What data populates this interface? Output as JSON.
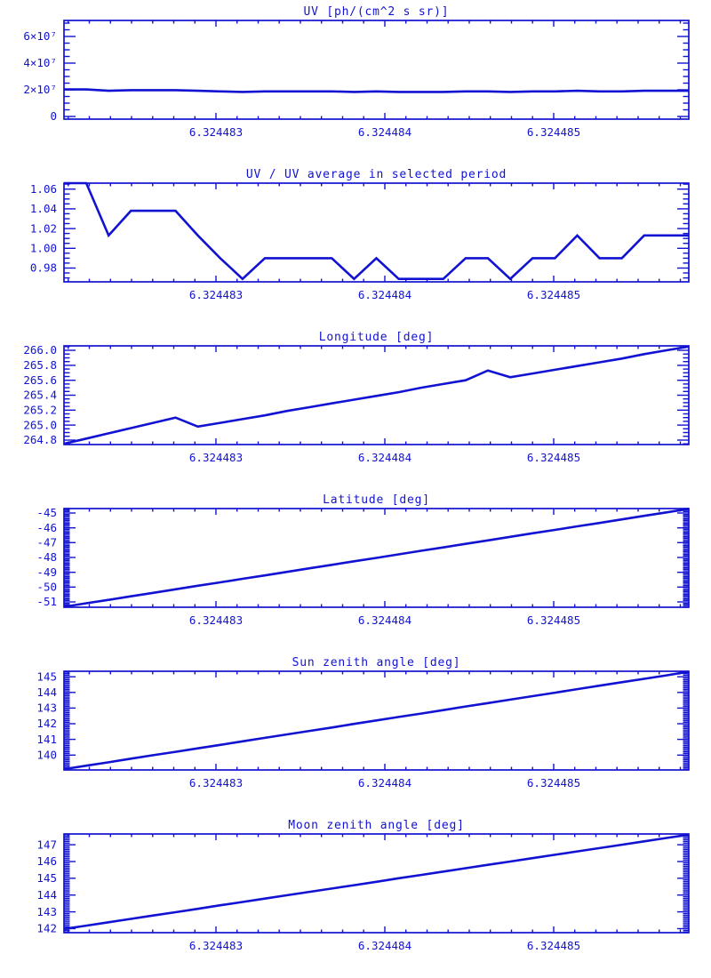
{
  "style": {
    "accent": "#1212d2",
    "background": "#ffffff"
  },
  "chart_data": [
    {
      "type": "line",
      "title": "UV [ph/(cm^2 s sr)]",
      "xlabel": "",
      "ylabel": "",
      "xlim": [
        6.3244821,
        6.3244858
      ],
      "xticks": [
        {
          "v": 6.324483,
          "label": "6.324483"
        },
        {
          "v": 6.324484,
          "label": "6.324484"
        },
        {
          "v": 6.324485,
          "label": "6.324485"
        }
      ],
      "x_minor_div": 8,
      "ylim": [
        -2000000,
        72000000
      ],
      "yticks": [
        {
          "v": 0,
          "label": "0"
        },
        {
          "v": 20000000,
          "label": "2×10⁷"
        },
        {
          "v": 40000000,
          "label": "4×10⁷"
        },
        {
          "v": 60000000,
          "label": "6×10⁷"
        }
      ],
      "y_minor_div": 4,
      "values": [
        20254000,
        20254000,
        19247000,
        19722000,
        19722000,
        19722000,
        19247000,
        18810000,
        18411000,
        18810000,
        18810000,
        18810000,
        18810000,
        18411000,
        18810000,
        18411000,
        18411000,
        18411000,
        18810000,
        18810000,
        18411000,
        18810000,
        18810000,
        19247000,
        18810000,
        18810000,
        19247000,
        19247000,
        19247000
      ]
    },
    {
      "type": "line",
      "title": "UV / UV average in selected period",
      "xlabel": "",
      "ylabel": "",
      "xlim": [
        6.3244821,
        6.3244858
      ],
      "xticks": [
        {
          "v": 6.324483,
          "label": "6.324483"
        },
        {
          "v": 6.324484,
          "label": "6.324484"
        },
        {
          "v": 6.324485,
          "label": "6.324485"
        }
      ],
      "x_minor_div": 8,
      "ylim": [
        0.966,
        1.066
      ],
      "yticks": [
        {
          "v": 0.98,
          "label": "0.98"
        },
        {
          "v": 1.0,
          "label": "1.00"
        },
        {
          "v": 1.02,
          "label": "1.02"
        },
        {
          "v": 1.04,
          "label": "1.04"
        },
        {
          "v": 1.06,
          "label": "1.06"
        }
      ],
      "y_minor_div": 4,
      "values": [
        1.066,
        1.066,
        1.013,
        1.038,
        1.038,
        1.038,
        1.013,
        0.99,
        0.969,
        0.99,
        0.99,
        0.99,
        0.99,
        0.969,
        0.99,
        0.969,
        0.969,
        0.969,
        0.99,
        0.99,
        0.969,
        0.99,
        0.99,
        1.013,
        0.99,
        0.99,
        1.013,
        1.013,
        1.013
      ]
    },
    {
      "type": "line",
      "title": "Longitude [deg]",
      "xlabel": "",
      "ylabel": "",
      "xlim": [
        6.3244821,
        6.3244858
      ],
      "xticks": [
        {
          "v": 6.324483,
          "label": "6.324483"
        },
        {
          "v": 6.324484,
          "label": "6.324484"
        },
        {
          "v": 6.324485,
          "label": "6.324485"
        }
      ],
      "x_minor_div": 8,
      "ylim": [
        264.74,
        266.06
      ],
      "yticks": [
        {
          "v": 264.8,
          "label": "264.8"
        },
        {
          "v": 265.0,
          "label": "265.0"
        },
        {
          "v": 265.2,
          "label": "265.2"
        },
        {
          "v": 265.4,
          "label": "265.4"
        },
        {
          "v": 265.6,
          "label": "265.6"
        },
        {
          "v": 265.8,
          "label": "265.8"
        },
        {
          "v": 266.0,
          "label": "266.0"
        }
      ],
      "y_minor_div": 4,
      "values": [
        264.75,
        264.82,
        264.89,
        264.96,
        265.03,
        265.1,
        264.98,
        265.03,
        265.08,
        265.13,
        265.19,
        265.24,
        265.29,
        265.34,
        265.39,
        265.44,
        265.5,
        265.55,
        265.6,
        265.73,
        265.64,
        265.69,
        265.74,
        265.79,
        265.84,
        265.89,
        265.95,
        266.0,
        266.05
      ]
    },
    {
      "type": "line",
      "title": "Latitude [deg]",
      "xlabel": "",
      "ylabel": "",
      "xlim": [
        6.3244821,
        6.3244858
      ],
      "xticks": [
        {
          "v": 6.324483,
          "label": "6.324483"
        },
        {
          "v": 6.324484,
          "label": "6.324484"
        },
        {
          "v": 6.324485,
          "label": "6.324485"
        }
      ],
      "x_minor_div": 8,
      "ylim": [
        -51.36,
        -44.7
      ],
      "yticks": [
        {
          "v": -51,
          "label": "-51"
        },
        {
          "v": -50,
          "label": "-50"
        },
        {
          "v": -49,
          "label": "-49"
        },
        {
          "v": -48,
          "label": "-48"
        },
        {
          "v": -47,
          "label": "-47"
        },
        {
          "v": -46,
          "label": "-46"
        },
        {
          "v": -45,
          "label": "-45"
        }
      ],
      "y_minor_div": 10,
      "values": [
        -51.33,
        -51.09,
        -50.86,
        -50.62,
        -50.39,
        -50.15,
        -49.91,
        -49.68,
        -49.44,
        -49.21,
        -48.97,
        -48.73,
        -48.5,
        -48.26,
        -48.03,
        -47.79,
        -47.55,
        -47.32,
        -47.08,
        -46.85,
        -46.61,
        -46.37,
        -46.14,
        -45.9,
        -45.67,
        -45.43,
        -45.19,
        -44.96,
        -44.72
      ]
    },
    {
      "type": "line",
      "title": "Sun zenith angle [deg]",
      "xlabel": "",
      "ylabel": "",
      "xlim": [
        6.3244821,
        6.3244858
      ],
      "xticks": [
        {
          "v": 6.324483,
          "label": "6.324483"
        },
        {
          "v": 6.324484,
          "label": "6.324484"
        },
        {
          "v": 6.324485,
          "label": "6.324485"
        }
      ],
      "x_minor_div": 8,
      "ylim": [
        139.05,
        145.35
      ],
      "yticks": [
        {
          "v": 140,
          "label": "140"
        },
        {
          "v": 141,
          "label": "141"
        },
        {
          "v": 142,
          "label": "142"
        },
        {
          "v": 143,
          "label": "143"
        },
        {
          "v": 144,
          "label": "144"
        },
        {
          "v": 145,
          "label": "145"
        }
      ],
      "y_minor_div": 10,
      "values": [
        139.1,
        139.32,
        139.54,
        139.77,
        139.99,
        140.21,
        140.43,
        140.65,
        140.88,
        141.1,
        141.32,
        141.54,
        141.76,
        141.99,
        142.21,
        142.43,
        142.65,
        142.87,
        143.1,
        143.32,
        143.54,
        143.76,
        143.98,
        144.21,
        144.43,
        144.65,
        144.87,
        145.09,
        145.32
      ]
    },
    {
      "type": "line",
      "title": "Moon zenith angle [deg]",
      "xlabel": "",
      "ylabel": "",
      "xlim": [
        6.3244821,
        6.3244858
      ],
      "xticks": [
        {
          "v": 6.324483,
          "label": "6.324483"
        },
        {
          "v": 6.324484,
          "label": "6.324484"
        },
        {
          "v": 6.324485,
          "label": "6.324485"
        }
      ],
      "x_minor_div": 8,
      "ylim": [
        141.76,
        147.64
      ],
      "yticks": [
        {
          "v": 142,
          "label": "142"
        },
        {
          "v": 143,
          "label": "143"
        },
        {
          "v": 144,
          "label": "144"
        },
        {
          "v": 145,
          "label": "145"
        },
        {
          "v": 146,
          "label": "146"
        },
        {
          "v": 147,
          "label": "147"
        }
      ],
      "y_minor_div": 10,
      "values": [
        141.98,
        142.18,
        142.38,
        142.58,
        142.78,
        142.98,
        143.18,
        143.39,
        143.59,
        143.79,
        143.99,
        144.19,
        144.39,
        144.59,
        144.79,
        145.0,
        145.2,
        145.4,
        145.6,
        145.8,
        146.0,
        146.2,
        146.4,
        146.6,
        146.8,
        147.0,
        147.2,
        147.4,
        147.6
      ]
    }
  ]
}
